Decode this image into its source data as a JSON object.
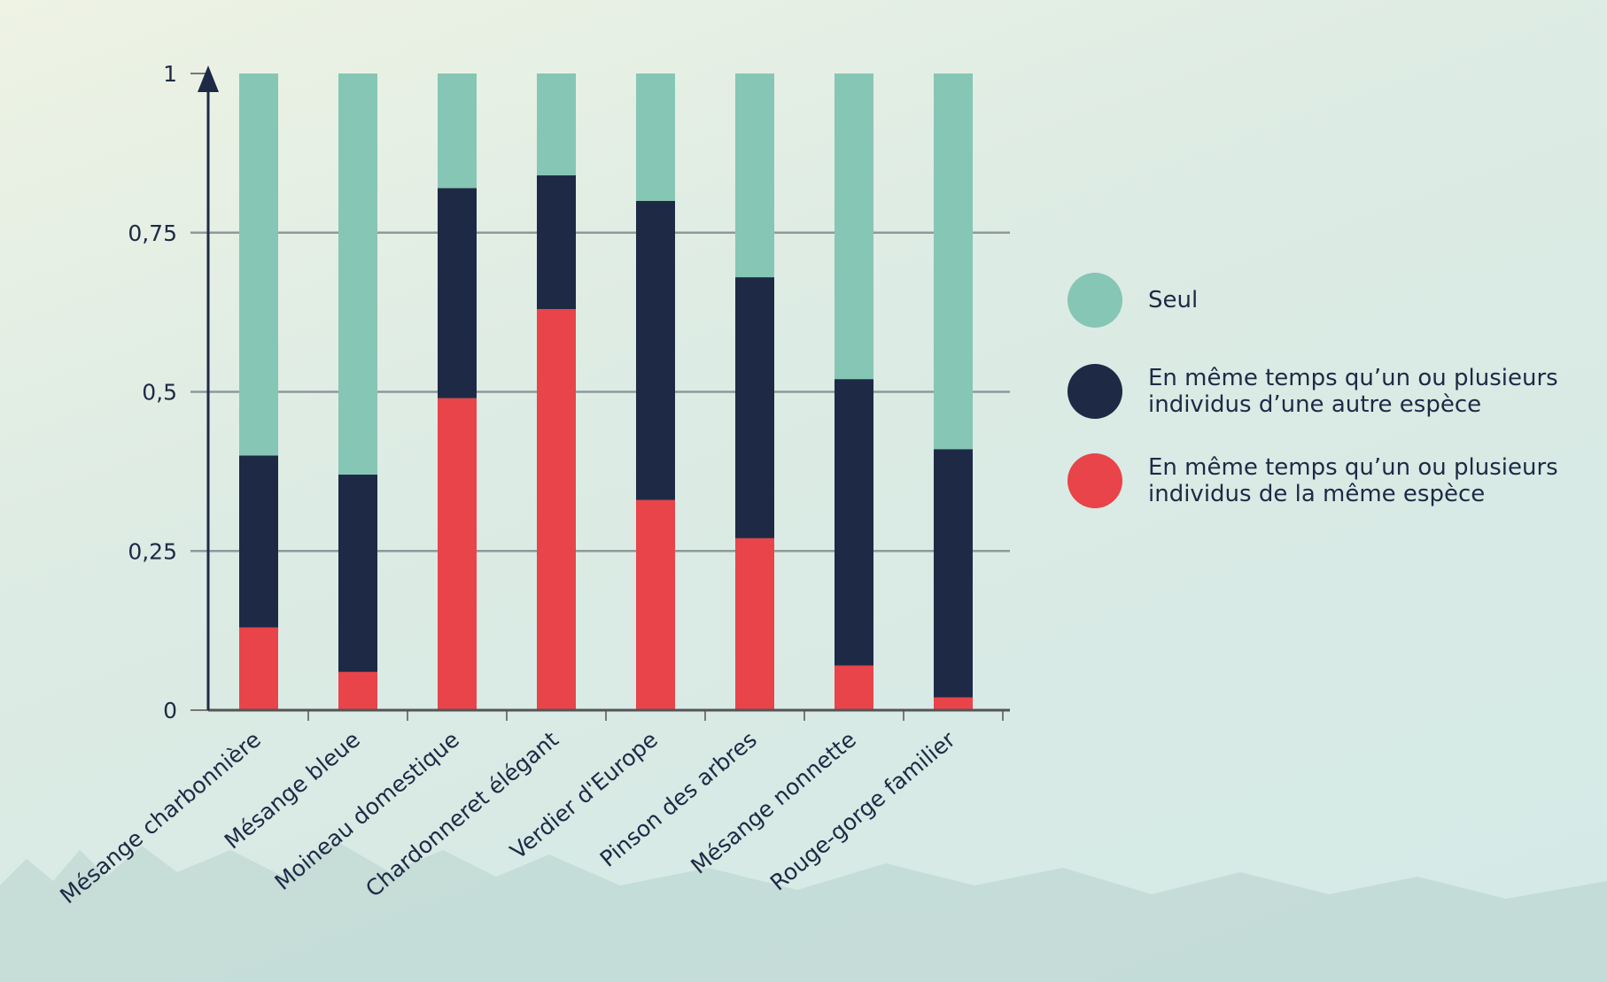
{
  "chart_data": {
    "type": "stacked_bar",
    "categories": [
      "Mésange charbonnière",
      "Mésange bleue",
      "Moineau domestique",
      "Chardonneret élégant",
      "Verdier d'Europe",
      "Pinson des arbres",
      "Mésange nonnette",
      "Rouge-gorge familier"
    ],
    "series": [
      {
        "name": "Seul",
        "color": "#86c6b4",
        "values": [
          0.6,
          0.63,
          0.18,
          0.16,
          0.2,
          0.32,
          0.48,
          0.59
        ]
      },
      {
        "name": "En même temps qu’un ou plusieurs individus d’une autre espèce",
        "color": "#1e2a45",
        "values": [
          0.27,
          0.31,
          0.33,
          0.21,
          0.47,
          0.41,
          0.45,
          0.39
        ]
      },
      {
        "name": "En même temps qu’un ou plusieurs individus de la même espèce",
        "color": "#e8444a",
        "values": [
          0.13,
          0.06,
          0.49,
          0.63,
          0.33,
          0.27,
          0.07,
          0.02
        ]
      }
    ],
    "ylim": [
      0,
      1
    ],
    "yticks": [
      0,
      {
        "value": 0.25,
        "label": "0,25"
      },
      {
        "value": 0.5,
        "label": "0,5"
      },
      {
        "value": 0.75,
        "label": "0,75"
      },
      1
    ],
    "grid": true
  }
}
